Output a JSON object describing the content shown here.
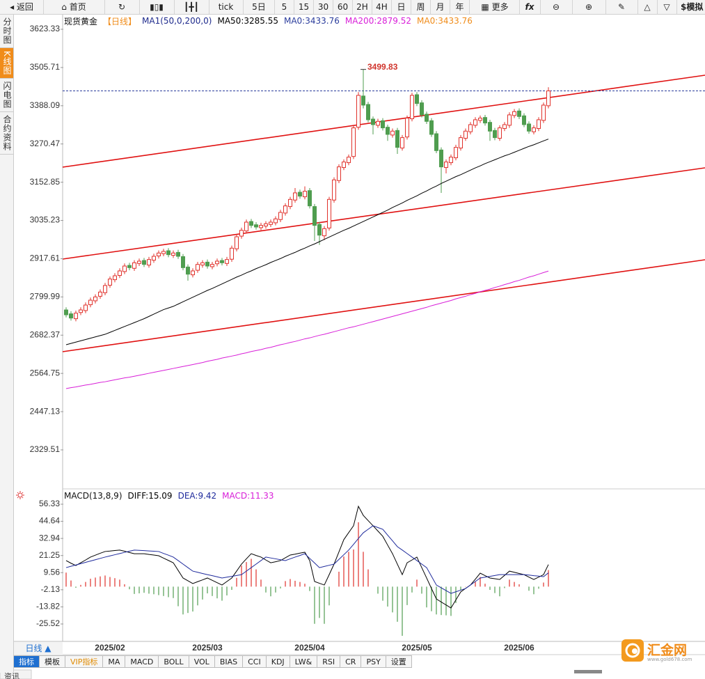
{
  "toolbar": {
    "back": "返回",
    "home": "首页",
    "periods": [
      "tick",
      "5日",
      "5",
      "15",
      "30",
      "60",
      "2H",
      "4H",
      "日",
      "周",
      "月",
      "年"
    ],
    "more": "更多",
    "formula": "fx",
    "simulate": "$模拟"
  },
  "sidebar": [
    "分时图",
    "K线图",
    "闪电图",
    "合约资料"
  ],
  "chart_data": [
    {
      "type": "candlestick",
      "title": "现货黄金",
      "period": "【日线】",
      "indicator": "MA1(50,0,200,0)",
      "up_color": "#e0302a",
      "down_color": "#4f9d4f",
      "indicator_color": "#1e2a8c",
      "period_color": "#f08c1a",
      "categories": [
        null,
        null,
        null,
        null,
        null,
        null,
        null,
        null,
        null,
        "2025/02",
        null,
        null,
        null,
        null,
        null,
        null,
        null,
        null,
        null,
        null,
        null,
        null,
        null,
        null,
        null,
        null,
        null,
        null,
        null,
        "2025/03",
        null,
        null,
        null,
        null,
        null,
        null,
        null,
        null,
        null,
        null,
        null,
        null,
        null,
        null,
        null,
        null,
        null,
        null,
        null,
        null,
        "2025/04",
        null,
        null,
        null,
        null,
        null,
        null,
        null,
        null,
        null,
        null,
        null,
        null,
        null,
        null,
        null,
        null,
        null,
        null,
        null,
        null,
        null,
        "2025/05",
        null,
        null,
        null,
        null,
        null,
        null,
        null,
        null,
        null,
        null,
        null,
        null,
        null,
        null,
        null,
        null,
        null,
        null,
        null,
        null,
        "2025/06",
        null,
        null,
        null,
        null,
        null,
        null
      ],
      "open": [
        2760,
        2748,
        2733,
        2752,
        2758,
        2776,
        2788,
        2802,
        2813,
        2836,
        2853,
        2866,
        2878,
        2897,
        2888,
        2903,
        2912,
        2898,
        2913,
        2926,
        2933,
        2942,
        2928,
        2937,
        2924,
        2892,
        2868,
        2882,
        2898,
        2907,
        2893,
        2902,
        2912,
        2903,
        2916,
        2948,
        2987,
        3003,
        3032,
        3022,
        3013,
        3018,
        3023,
        3028,
        3038,
        3058,
        3078,
        3098,
        3122,
        3108,
        3127,
        3078,
        3023,
        2988,
        3012,
        3098,
        3158,
        3198,
        3213,
        3232,
        3322,
        3418,
        3392,
        3347,
        3328,
        3342,
        3322,
        3298,
        3312,
        3258,
        3292,
        3348,
        3422,
        3397,
        3362,
        3342,
        3302,
        3252,
        3198,
        3213,
        3228,
        3258,
        3288,
        3308,
        3328,
        3343,
        3352,
        3337,
        3312,
        3288,
        3318,
        3328,
        3358,
        3372,
        3357,
        3332,
        3308,
        3318,
        3343,
        3388
      ],
      "high": [
        2768,
        2756,
        2758,
        2768,
        2783,
        2798,
        2808,
        2823,
        2843,
        2863,
        2873,
        2888,
        2903,
        2905,
        2913,
        2918,
        2920,
        2923,
        2933,
        2943,
        2948,
        2950,
        2943,
        2945,
        2932,
        2900,
        2888,
        2908,
        2913,
        2915,
        2908,
        2918,
        2920,
        2923,
        2958,
        2993,
        3013,
        3038,
        3040,
        3030,
        3028,
        3033,
        3038,
        3048,
        3068,
        3088,
        3108,
        3135,
        3130,
        3140,
        3135,
        3086,
        3031,
        3018,
        3108,
        3168,
        3208,
        3223,
        3238,
        3328,
        3430,
        3499.83,
        3400,
        3355,
        3348,
        3350,
        3330,
        3318,
        3320,
        3298,
        3358,
        3428,
        3430,
        3405,
        3370,
        3350,
        3310,
        3260,
        3223,
        3238,
        3268,
        3298,
        3318,
        3338,
        3353,
        3358,
        3360,
        3345,
        3320,
        3328,
        3338,
        3368,
        3378,
        3380,
        3365,
        3340,
        3328,
        3353,
        3398,
        3445
      ],
      "low": [
        2737,
        2727,
        2725,
        2744,
        2750,
        2768,
        2780,
        2794,
        2805,
        2828,
        2845,
        2858,
        2870,
        2882,
        2880,
        2895,
        2892,
        2890,
        2905,
        2918,
        2925,
        2922,
        2920,
        2917,
        2882,
        2850,
        2860,
        2874,
        2890,
        2887,
        2885,
        2894,
        2897,
        2895,
        2908,
        2940,
        2979,
        2995,
        3012,
        3007,
        3005,
        3010,
        3015,
        3020,
        3030,
        3050,
        3070,
        3090,
        3102,
        3100,
        3072,
        2972,
        2960,
        2975,
        3004,
        3090,
        3150,
        3190,
        3205,
        3224,
        3314,
        3380,
        3337,
        3300,
        3320,
        3312,
        3280,
        3290,
        3240,
        3250,
        3284,
        3340,
        3387,
        3352,
        3332,
        3292,
        3242,
        3120,
        3180,
        3205,
        3220,
        3250,
        3280,
        3300,
        3320,
        3335,
        3327,
        3280,
        3282,
        3280,
        3310,
        3320,
        3350,
        3347,
        3322,
        3302,
        3300,
        3310,
        3335,
        3380
      ],
      "close": [
        2745,
        2735,
        2750,
        2760,
        2775,
        2790,
        2800,
        2815,
        2835,
        2855,
        2865,
        2880,
        2895,
        2890,
        2905,
        2910,
        2900,
        2915,
        2925,
        2935,
        2940,
        2930,
        2935,
        2925,
        2890,
        2870,
        2880,
        2900,
        2905,
        2895,
        2900,
        2910,
        2905,
        2915,
        2950,
        2985,
        3005,
        3030,
        3020,
        3015,
        3020,
        3025,
        3030,
        3040,
        3060,
        3080,
        3100,
        3120,
        3110,
        3125,
        3080,
        3020,
        2990,
        3010,
        3100,
        3160,
        3200,
        3215,
        3230,
        3320,
        3420,
        3390,
        3345,
        3330,
        3340,
        3320,
        3300,
        3310,
        3260,
        3290,
        3350,
        3420,
        3395,
        3360,
        3340,
        3300,
        3250,
        3200,
        3215,
        3230,
        3260,
        3290,
        3310,
        3330,
        3345,
        3350,
        3335,
        3310,
        3290,
        3320,
        3330,
        3360,
        3370,
        3355,
        3330,
        3310,
        3320,
        3345,
        3390,
        3433.76
      ],
      "lines": [
        {
          "name": "MA50:3285.55",
          "color": "#000000",
          "values": [
            2653,
            2657,
            2661,
            2665,
            2669,
            2673,
            2677,
            2681,
            2685,
            2691,
            2697,
            2703,
            2709,
            2715,
            2721,
            2727,
            2733,
            2740,
            2747,
            2754,
            2761,
            2766,
            2771,
            2778,
            2785,
            2792,
            2799,
            2806,
            2813,
            2820,
            2826,
            2833,
            2840,
            2847,
            2854,
            2861,
            2867,
            2874,
            2880,
            2887,
            2893,
            2899,
            2906,
            2912,
            2918,
            2925,
            2931,
            2937,
            2944,
            2950,
            2957,
            2963,
            2970,
            2977,
            2984,
            2991,
            2998,
            3005,
            3011,
            3018,
            3025,
            3032,
            3039,
            3046,
            3053,
            3060,
            3067,
            3075,
            3082,
            3089,
            3097,
            3104,
            3111,
            3119,
            3126,
            3134,
            3141,
            3149,
            3156,
            3163,
            3170,
            3176,
            3183,
            3190,
            3197,
            3203,
            3210,
            3216,
            3222,
            3228,
            3234,
            3239,
            3245,
            3251,
            3257,
            3263,
            3268,
            3274,
            3280,
            3285.55
          ]
        },
        {
          "name": "MA200:2879.52",
          "color": "#d81ed8",
          "values": [
            2518,
            2521,
            2523,
            2526,
            2529,
            2531,
            2534,
            2537,
            2539,
            2542,
            2545,
            2548,
            2551,
            2553,
            2556,
            2559,
            2562,
            2565,
            2568,
            2571,
            2574,
            2577,
            2580,
            2583,
            2586,
            2589,
            2592,
            2595,
            2598,
            2602,
            2605,
            2608,
            2612,
            2615,
            2618,
            2621,
            2625,
            2628,
            2632,
            2635,
            2638,
            2642,
            2645,
            2649,
            2653,
            2656,
            2660,
            2663,
            2667,
            2671,
            2674,
            2678,
            2682,
            2685,
            2689,
            2693,
            2697,
            2701,
            2705,
            2708,
            2712,
            2716,
            2720,
            2724,
            2728,
            2732,
            2736,
            2740,
            2744,
            2748,
            2752,
            2756,
            2760,
            2764,
            2768,
            2773,
            2777,
            2781,
            2785,
            2789,
            2794,
            2798,
            2802,
            2807,
            2811,
            2816,
            2820,
            2824,
            2829,
            2833,
            2838,
            2842,
            2847,
            2851,
            2856,
            2861,
            2865,
            2870,
            2875,
            2879.52
          ]
        }
      ],
      "price_line": {
        "name": "MA0:3433.76",
        "value": 3433.76,
        "color": "#2a3c9c"
      },
      "legend_extra": {
        "name": "MA0:3433.76",
        "color": "#f08c1a"
      },
      "max_label": 3499.83,
      "max_label_color": "#d0342c",
      "ylim": [
        2213.8,
        3666.2
      ],
      "yticks": [
        3623.33,
        3505.71,
        3388.09,
        3270.47,
        3152.85,
        3035.23,
        2917.61,
        2799.99,
        2682.37,
        2564.75,
        2447.13,
        2329.51
      ]
    },
    {
      "type": "macd",
      "title": "MACD(13,8,9)",
      "up_color": "#e0302a",
      "down_color": "#4f9d4f",
      "series": [
        {
          "name": "DIFF:15.09",
          "color": "#000000",
          "type": "line",
          "values": [
            17.8,
            16.0,
            14.4,
            16.3,
            18.2,
            20.2,
            21.5,
            22.8,
            24.0,
            24.3,
            24.7,
            25.0,
            24.2,
            23.3,
            22.5,
            22.5,
            22.5,
            22.0,
            21.6,
            21.1,
            19.5,
            17.9,
            16.3,
            11.1,
            5.9,
            4.0,
            2.1,
            3.4,
            4.6,
            5.9,
            4.3,
            2.7,
            1.1,
            3.5,
            5.9,
            10.6,
            15.4,
            19.0,
            22.5,
            21.3,
            20.2,
            18.2,
            16.3,
            17.0,
            17.8,
            19.7,
            21.6,
            22.2,
            22.9,
            23.5,
            17.8,
            3.5,
            2.3,
            1.1,
            8.2,
            15.4,
            23.7,
            32.1,
            36.9,
            41.6,
            54.9,
            48.7,
            45.1,
            41.6,
            38.0,
            34.4,
            28.4,
            22.5,
            15.3,
            8.2,
            16.3,
            18.2,
            20.2,
            13.0,
            5.9,
            -1.3,
            -8.4,
            -10.5,
            -12.5,
            -14.6,
            -9.1,
            -3.6,
            -1.2,
            1.1,
            5.1,
            9.2,
            7.5,
            5.9,
            5.4,
            4.9,
            7.7,
            10.6,
            9.8,
            9.0,
            8.2,
            6.5,
            4.9,
            6.5,
            8.2,
            15.09
          ]
        },
        {
          "name": "DEA:9.42",
          "color": "#1e2a9c",
          "type": "line",
          "values": [
            13.0,
            13.9,
            14.8,
            15.7,
            16.6,
            17.5,
            18.4,
            19.3,
            20.2,
            21.0,
            21.8,
            22.6,
            23.4,
            24.2,
            25.0,
            24.8,
            24.6,
            24.4,
            24.2,
            24.0,
            22.7,
            21.5,
            20.2,
            17.8,
            15.4,
            13.0,
            10.6,
            9.8,
            9.0,
            8.2,
            7.5,
            6.7,
            5.9,
            6.5,
            7.0,
            7.6,
            8.2,
            10.6,
            13.0,
            15.4,
            17.8,
            20.2,
            19.6,
            19.0,
            18.4,
            17.8,
            19.0,
            20.2,
            21.3,
            22.5,
            19.3,
            16.2,
            13.0,
            13.8,
            14.6,
            15.4,
            18.6,
            21.8,
            25.0,
            28.9,
            32.9,
            36.8,
            39.2,
            41.6,
            40.4,
            39.2,
            35.2,
            31.3,
            27.3,
            25.0,
            22.6,
            20.2,
            17.8,
            15.4,
            13.0,
            7.1,
            1.1,
            -0.8,
            -2.7,
            -4.6,
            -3.5,
            -2.4,
            -1.3,
            1.1,
            3.5,
            5.9,
            6.5,
            7.0,
            7.6,
            8.2,
            8.2,
            8.2,
            8.2,
            8.2,
            8.2,
            7.9,
            7.5,
            7.2,
            6.8,
            9.42
          ]
        },
        {
          "name": "MACD:11.33",
          "color": "#d81ed8",
          "type": "bar",
          "values": [
            9.6,
            4.2,
            -0.8,
            1.2,
            3.2,
            5.4,
            6.2,
            7.0,
            7.6,
            6.6,
            5.8,
            4.8,
            1.6,
            -1.8,
            -5.0,
            -4.6,
            -4.2,
            -4.8,
            -5.2,
            -5.8,
            -6.4,
            -7.2,
            -7.8,
            -13.4,
            -19.0,
            -18.0,
            -17.0,
            -12.8,
            -8.8,
            -4.6,
            -6.4,
            -8.0,
            -9.6,
            -6.0,
            -2.2,
            6.0,
            14.4,
            16.8,
            19.0,
            11.8,
            4.8,
            -4.0,
            -6.6,
            -4.0,
            -1.2,
            3.8,
            5.2,
            4.0,
            3.2,
            2.0,
            -3.0,
            -25.4,
            -21.4,
            -25.4,
            -12.8,
            0,
            10.2,
            20.6,
            23.8,
            25.4,
            44.0,
            23.8,
            11.8,
            0,
            -4.8,
            -9.6,
            -13.6,
            -17.6,
            -24.0,
            -33.6,
            -12.6,
            -4.0,
            4.8,
            -4.8,
            -14.2,
            -16.8,
            -19.0,
            -19.4,
            -19.6,
            -20.0,
            -11.2,
            -2.4,
            0.2,
            0,
            3.2,
            6.6,
            2.0,
            -2.2,
            -4.4,
            -6.6,
            -1.0,
            4.8,
            3.2,
            1.6,
            0,
            -2.8,
            -5.2,
            -1.4,
            2.8,
            11.33
          ]
        }
      ],
      "ylim": [
        -36.94,
        65.37
      ],
      "yticks": [
        56.33,
        44.64,
        32.94,
        21.25,
        9.56,
        -2.13,
        -13.82,
        -25.52
      ]
    }
  ],
  "bottom": {
    "period_button": "日线 ▲",
    "tabs": [
      "指标",
      "模板",
      "VIP指标",
      "MA",
      "MACD",
      "BOLL",
      "VOL",
      "BIAS",
      "CCI",
      "KDJ",
      "LW&",
      "RSI",
      "CR",
      "PSY",
      "设置"
    ],
    "logo": "汇金网",
    "logo_url": "www.gold678.com",
    "news": "资讯"
  }
}
